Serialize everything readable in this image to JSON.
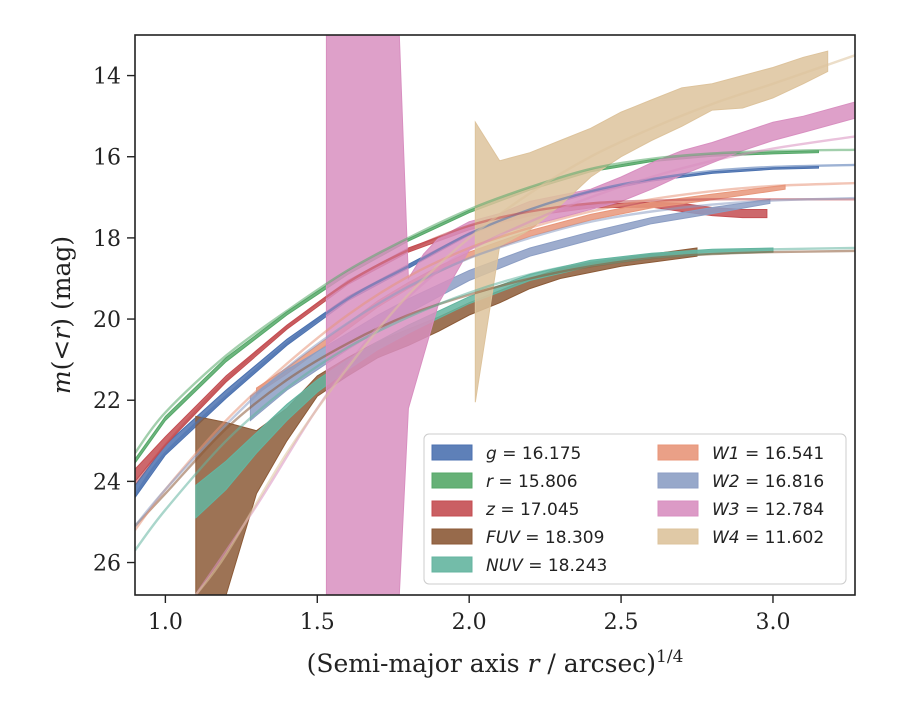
{
  "chart_data": {
    "type": "line",
    "title": "",
    "xlabel": "(Semi-major axis r / arcsec)^{1/4}",
    "ylabel": "m(<r) (mag)",
    "xlim": [
      0.9,
      3.27
    ],
    "ylim": [
      26.8,
      13.0
    ],
    "y_inverted": true,
    "x_ticks": [
      1.0,
      1.5,
      2.0,
      2.5,
      3.0
    ],
    "x_tick_labels": [
      "1.0",
      "1.5",
      "2.0",
      "2.5",
      "3.0"
    ],
    "y_ticks": [
      14,
      16,
      18,
      20,
      22,
      24,
      26
    ],
    "y_tick_labels": [
      "14",
      "16",
      "18",
      "20",
      "22",
      "24",
      "26"
    ],
    "grid": false,
    "legend_position": "lower-right",
    "legend_columns": 2,
    "series": [
      {
        "name": "g = 16.175",
        "band": "g",
        "total": "16.175",
        "color": "#4c72b0",
        "fit_x": [
          0.9,
          1.0,
          1.2,
          1.4,
          1.6,
          1.8,
          2.0,
          2.2,
          2.4,
          2.6,
          2.8,
          3.0,
          3.27
        ],
        "fit_y": [
          24.35,
          23.3,
          21.9,
          20.6,
          19.5,
          18.7,
          17.9,
          17.3,
          16.85,
          16.55,
          16.35,
          16.25,
          16.2
        ],
        "band_x": [
          0.9,
          1.0,
          1.2,
          1.4,
          1.6,
          1.8,
          2.0,
          2.2,
          2.4,
          2.6,
          2.8,
          3.0,
          3.15
        ],
        "band_lo": [
          24.1,
          23.1,
          21.75,
          20.5,
          19.45,
          18.65,
          17.87,
          17.28,
          16.85,
          16.56,
          16.37,
          16.27,
          16.24
        ],
        "band_hi": [
          24.4,
          23.35,
          21.95,
          20.65,
          19.55,
          18.75,
          17.93,
          17.33,
          16.89,
          16.6,
          16.41,
          16.31,
          16.28
        ]
      },
      {
        "name": "r = 15.806",
        "band": "r",
        "total": "15.806",
        "color": "#55a868",
        "fit_x": [
          0.9,
          1.0,
          1.2,
          1.4,
          1.6,
          1.8,
          2.0,
          2.2,
          2.4,
          2.6,
          2.8,
          3.0,
          3.27
        ],
        "fit_y": [
          23.3,
          22.3,
          20.9,
          19.8,
          18.8,
          18.0,
          17.3,
          16.75,
          16.3,
          16.05,
          15.92,
          15.86,
          15.83
        ],
        "band_x": [
          0.9,
          1.0,
          1.2,
          1.4,
          1.6,
          1.8,
          2.0,
          2.2,
          2.4,
          2.6,
          2.8,
          3.0,
          3.15
        ],
        "band_lo": [
          23.45,
          22.4,
          20.95,
          19.82,
          18.82,
          18.02,
          17.32,
          16.77,
          16.32,
          16.07,
          15.94,
          15.88,
          15.85
        ],
        "band_hi": [
          23.55,
          22.5,
          21.05,
          19.9,
          18.9,
          18.08,
          17.38,
          16.82,
          16.37,
          16.12,
          15.99,
          15.93,
          15.9
        ]
      },
      {
        "name": "z = 17.045",
        "band": "z",
        "total": "17.045",
        "color": "#c44e52",
        "fit_x": [
          0.9,
          1.0,
          1.2,
          1.4,
          1.6,
          1.8,
          2.0,
          2.2,
          2.4,
          2.6,
          2.8,
          3.0,
          3.27
        ],
        "fit_y": [
          24.05,
          23.1,
          21.5,
          20.2,
          19.1,
          18.3,
          17.7,
          17.35,
          17.15,
          17.08,
          17.05,
          17.05,
          17.05
        ],
        "band_x": [
          0.9,
          1.0,
          1.2,
          1.4,
          1.6,
          1.8,
          2.0,
          2.2,
          2.4,
          2.6,
          2.7,
          2.8,
          2.9,
          2.98
        ],
        "band_lo": [
          23.7,
          22.9,
          21.4,
          20.15,
          19.05,
          18.25,
          17.7,
          17.38,
          17.18,
          17.12,
          17.15,
          17.25,
          17.3,
          17.3
        ],
        "band_hi": [
          24.0,
          23.1,
          21.55,
          20.25,
          19.15,
          18.35,
          17.8,
          17.46,
          17.26,
          17.24,
          17.35,
          17.45,
          17.5,
          17.5
        ]
      },
      {
        "name": "FUV = 18.309",
        "band": "FUV",
        "total": "18.309",
        "color": "#8c5a37",
        "fit_x": [
          0.9,
          1.0,
          1.2,
          1.4,
          1.6,
          1.8,
          2.0,
          2.2,
          2.4,
          2.6,
          2.8,
          3.0,
          3.27
        ],
        "fit_y": [
          25.1,
          24.3,
          22.7,
          21.5,
          20.6,
          19.9,
          19.4,
          19.0,
          18.7,
          18.5,
          18.4,
          18.35,
          18.32
        ],
        "band_x": [
          1.1,
          1.2,
          1.3,
          1.4,
          1.5,
          1.6,
          1.7,
          1.8,
          1.9,
          2.0,
          2.1,
          2.2,
          2.3,
          2.4,
          2.5,
          2.6,
          2.75
        ],
        "band_lo": [
          22.4,
          22.55,
          22.75,
          22.2,
          21.4,
          20.95,
          20.55,
          20.25,
          19.95,
          19.6,
          19.3,
          19.0,
          18.75,
          18.6,
          18.5,
          18.4,
          18.25
        ],
        "band_hi": [
          26.8,
          26.8,
          24.3,
          23.0,
          21.9,
          21.4,
          20.95,
          20.65,
          20.3,
          19.9,
          19.6,
          19.25,
          19.0,
          18.85,
          18.7,
          18.6,
          18.45
        ]
      },
      {
        "name": "NUV = 18.243",
        "band": "NUV",
        "total": "18.243",
        "color": "#64b5a0",
        "fit_x": [
          0.9,
          1.0,
          1.2,
          1.4,
          1.6,
          1.8,
          2.0,
          2.2,
          2.4,
          2.6,
          2.8,
          3.0,
          3.27
        ],
        "fit_y": [
          25.7,
          24.7,
          23.0,
          21.7,
          20.7,
          19.95,
          19.35,
          18.9,
          18.6,
          18.42,
          18.33,
          18.28,
          18.25
        ],
        "band_x": [
          1.1,
          1.2,
          1.3,
          1.4,
          1.5,
          1.6,
          1.7,
          1.8,
          1.9,
          2.0,
          2.2,
          2.4,
          2.6,
          2.8,
          3.0
        ],
        "band_lo": [
          24.1,
          23.5,
          22.8,
          22.1,
          21.5,
          21.0,
          20.55,
          20.15,
          19.8,
          19.45,
          18.9,
          18.55,
          18.38,
          18.28,
          18.25
        ],
        "band_hi": [
          24.9,
          24.2,
          23.3,
          22.5,
          21.8,
          21.25,
          20.75,
          20.35,
          19.98,
          19.62,
          19.05,
          18.7,
          18.5,
          18.4,
          18.35
        ]
      },
      {
        "name": "W1 = 16.541",
        "band": "W1",
        "total": "16.541",
        "color": "#e8967a",
        "fit_x": [
          0.9,
          1.0,
          1.2,
          1.4,
          1.6,
          1.8,
          2.0,
          2.2,
          2.4,
          2.6,
          2.8,
          3.0,
          3.27
        ],
        "fit_y": [
          25.2,
          24.2,
          22.5,
          21.1,
          19.9,
          18.95,
          18.25,
          17.75,
          17.35,
          17.05,
          16.85,
          16.72,
          16.65
        ],
        "band_x": [
          1.3,
          1.4,
          1.5,
          1.6,
          1.7,
          1.8,
          1.9,
          2.0,
          2.2,
          2.4,
          2.6,
          2.8,
          3.04
        ],
        "band_lo": [
          21.7,
          21.2,
          20.65,
          20.1,
          19.55,
          19.1,
          18.7,
          18.35,
          17.82,
          17.42,
          17.12,
          16.92,
          16.7
        ],
        "band_hi": [
          21.85,
          21.35,
          20.8,
          20.25,
          19.7,
          19.25,
          18.85,
          18.5,
          17.96,
          17.56,
          17.26,
          17.06,
          16.8
        ]
      },
      {
        "name": "W2 = 16.816",
        "band": "W2",
        "total": "16.816",
        "color": "#8c9ec4",
        "fit_x": [
          0.9,
          1.0,
          1.2,
          1.4,
          1.6,
          1.8,
          2.0,
          2.2,
          2.4,
          2.6,
          2.8,
          3.0,
          3.27
        ],
        "fit_y": [
          25.1,
          24.2,
          22.6,
          21.2,
          20.1,
          19.2,
          18.5,
          18.0,
          17.6,
          17.35,
          17.18,
          17.08,
          17.02
        ],
        "band_x": [
          1.28,
          1.4,
          1.5,
          1.6,
          1.7,
          1.8,
          1.9,
          2.0,
          2.2,
          2.4,
          2.6,
          2.8,
          2.99
        ],
        "band_lo": [
          21.9,
          21.25,
          20.8,
          20.35,
          19.9,
          19.5,
          19.15,
          18.8,
          18.25,
          17.85,
          17.5,
          17.25,
          17.05
        ],
        "band_hi": [
          22.5,
          21.75,
          21.25,
          20.75,
          20.3,
          19.85,
          19.45,
          19.05,
          18.45,
          18.05,
          17.65,
          17.4,
          17.15
        ]
      },
      {
        "name": "W3 = 12.784",
        "band": "W3",
        "total": "12.784",
        "color": "#d88fc0",
        "fit_x": [
          1.1,
          1.3,
          1.5,
          1.7,
          1.9,
          2.0,
          2.2,
          2.4,
          2.6,
          2.8,
          3.0,
          3.27
        ],
        "fit_y": [
          26.8,
          24.6,
          22.2,
          20.2,
          18.8,
          18.3,
          17.6,
          17.0,
          16.5,
          16.1,
          15.8,
          15.5
        ],
        "band_x": [
          1.53,
          1.77,
          1.8,
          1.85,
          1.9,
          2.0,
          2.1,
          2.2,
          2.3,
          2.4,
          2.5,
          2.6,
          2.7,
          2.8,
          2.9,
          3.0,
          3.1,
          3.27
        ],
        "band_lo": [
          13.0,
          13.0,
          19.0,
          18.4,
          18.0,
          17.6,
          17.4,
          17.1,
          16.95,
          16.8,
          16.5,
          16.15,
          15.85,
          15.65,
          15.4,
          15.15,
          15.0,
          14.65
        ],
        "band_hi": [
          26.8,
          26.8,
          22.2,
          20.9,
          19.6,
          18.3,
          17.9,
          17.7,
          17.5,
          17.3,
          17.1,
          16.8,
          16.45,
          16.15,
          15.85,
          15.6,
          15.4,
          15.05
        ]
      },
      {
        "name": "W4 = 11.602",
        "band": "W4",
        "total": "11.602",
        "color": "#ddc39c",
        "fit_x": [
          1.1,
          1.2,
          1.4,
          1.6,
          1.8,
          2.0,
          2.2,
          2.4,
          2.6,
          2.8,
          3.0,
          3.27
        ],
        "fit_y": [
          26.8,
          25.8,
          23.3,
          21.2,
          19.4,
          18.0,
          16.9,
          16.0,
          15.3,
          14.7,
          14.2,
          13.5
        ],
        "band_x": [
          2.02,
          2.1,
          2.2,
          2.3,
          2.4,
          2.5,
          2.6,
          2.7,
          2.8,
          2.9,
          3.0,
          3.1,
          3.18
        ],
        "band_lo": [
          15.15,
          16.1,
          15.9,
          15.6,
          15.3,
          14.9,
          14.6,
          14.3,
          14.2,
          14.0,
          13.8,
          13.55,
          13.4
        ],
        "band_hi": [
          22.05,
          18.2,
          17.8,
          17.2,
          16.5,
          16.0,
          15.6,
          15.25,
          14.85,
          14.8,
          14.55,
          14.2,
          13.9
        ]
      }
    ],
    "legend_entries": [
      {
        "band": "g",
        "value": "16.175",
        "color": "#4c72b0"
      },
      {
        "band": "r",
        "value": "15.806",
        "color": "#55a868"
      },
      {
        "band": "z",
        "value": "17.045",
        "color": "#c44e52"
      },
      {
        "band": "FUV",
        "value": "18.309",
        "color": "#8c5a37"
      },
      {
        "band": "NUV",
        "value": "18.243",
        "color": "#64b5a0"
      },
      {
        "band": "W1",
        "value": "16.541",
        "color": "#e8967a"
      },
      {
        "band": "W2",
        "value": "16.816",
        "color": "#8c9ec4"
      },
      {
        "band": "W3",
        "value": "12.784",
        "color": "#d88fc0"
      },
      {
        "band": "W4",
        "value": "11.602",
        "color": "#ddc39c"
      }
    ]
  }
}
